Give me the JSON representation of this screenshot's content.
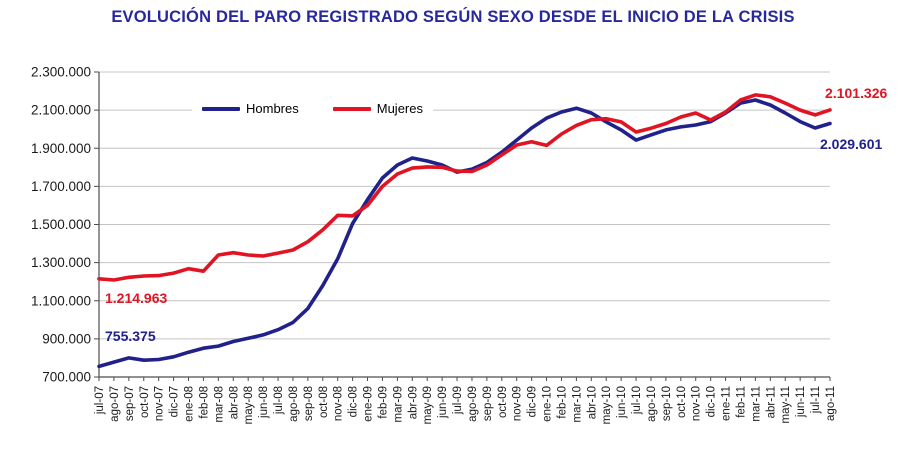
{
  "title": "EVOLUCIÓN DEL PARO REGISTRADO SEGÚN SEXO DESDE EL INICIO DE LA CRISIS",
  "colors": {
    "title": "#28289E",
    "hombres": "#21218B",
    "mujeres": "#E01422",
    "grid": "#C4C4C4",
    "axis": "#4D4D4D",
    "tick_label": "#1A1A1A"
  },
  "legend": {
    "hombres_label": "Hombres",
    "mujeres_label": "Mujeres"
  },
  "annotations": {
    "hombres_start": "755.375",
    "mujeres_start": "1.214.963",
    "mujeres_end": "2.101.326",
    "hombres_end": "2.029.601"
  },
  "y_axis_tick_labels": [
    "700.000",
    "900.000",
    "1.100.000",
    "1.300.000",
    "1.500.000",
    "1.700.000",
    "1.900.000",
    "2.100.000",
    "2.300.000"
  ],
  "chart_data": {
    "type": "line",
    "title": "EVOLUCIÓN DEL PARO REGISTRADO SEGÚN SEXO DESDE EL INICIO DE LA CRISIS",
    "xlabel": "",
    "ylabel": "",
    "ylim": [
      700000,
      2300000
    ],
    "ytick_step": 200000,
    "grid": true,
    "legend_position": "top-left-inside",
    "categories": [
      "jul-07",
      "ago-07",
      "sep-07",
      "oct-07",
      "nov-07",
      "dic-07",
      "ene-08",
      "feb-08",
      "mar-08",
      "abr-08",
      "may-08",
      "jun-08",
      "jul-08",
      "ago-08",
      "sep-08",
      "oct-08",
      "nov-08",
      "dic-08",
      "ene-09",
      "feb-09",
      "mar-09",
      "abr-09",
      "may-09",
      "jun-09",
      "jul-09",
      "ago-09",
      "sep-09",
      "oct-09",
      "nov-09",
      "dic-09",
      "ene-10",
      "feb-10",
      "mar-10",
      "abr-10",
      "may-10",
      "jun-10",
      "jul-10",
      "ago-10",
      "sep-10",
      "oct-10",
      "nov-10",
      "dic-10",
      "ene-11",
      "feb-11",
      "mar-11",
      "abr-11",
      "may-11",
      "jun-11",
      "jul-11",
      "ago-11"
    ],
    "series": [
      {
        "name": "Hombres",
        "color": "#21218B",
        "values": [
          755375,
          778000,
          800000,
          788000,
          792000,
          806000,
          830000,
          851000,
          862000,
          886000,
          903000,
          921000,
          948000,
          986000,
          1060000,
          1180000,
          1320000,
          1505000,
          1630000,
          1744000,
          1812000,
          1849000,
          1833000,
          1812000,
          1775000,
          1790000,
          1825000,
          1880000,
          1943000,
          2006000,
          2058000,
          2090000,
          2110000,
          2085000,
          2038000,
          1996000,
          1943000,
          1970000,
          1996000,
          2012000,
          2022000,
          2040000,
          2085000,
          2137000,
          2153000,
          2127000,
          2085000,
          2040000,
          2006000,
          2029601
        ]
      },
      {
        "name": "Mujeres",
        "color": "#E01422",
        "values": [
          1214963,
          1209000,
          1223000,
          1230000,
          1232000,
          1245000,
          1268000,
          1255000,
          1340000,
          1352000,
          1340000,
          1335000,
          1350000,
          1366000,
          1410000,
          1472000,
          1548000,
          1545000,
          1600000,
          1700000,
          1765000,
          1796000,
          1802000,
          1800000,
          1780000,
          1778000,
          1812000,
          1865000,
          1917000,
          1934000,
          1915000,
          1975000,
          2020000,
          2050000,
          2055000,
          2038000,
          1985000,
          2005000,
          2030000,
          2064000,
          2085000,
          2048000,
          2090000,
          2153000,
          2180000,
          2170000,
          2137000,
          2100000,
          2075000,
          2101326
        ]
      }
    ]
  }
}
